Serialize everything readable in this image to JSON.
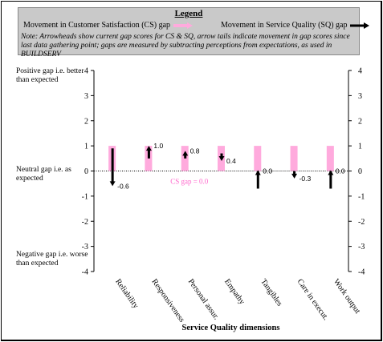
{
  "legend": {
    "title": "Legend",
    "cs_label": "Movement in Customer Satisfaction (CS) gap",
    "sq_label": "Movement in Service Quality (SQ) gap",
    "note": "Note: Arrowheads show current gap scores for CS & SQ, arrow tails indicate movement in gap scores since last data gathering point; gaps are measured by subtracting perceptions from expectations, as used in BUILDSERV"
  },
  "side_labels": {
    "positive": "Positive gap i.e. better than expected",
    "neutral": "Neutral gap i.e. as expected",
    "negative": "Negative gap i.e. worse than expected"
  },
  "colors": {
    "cs": "#ffaadd",
    "sq": "#000000",
    "cs_label": "#ff66cc"
  },
  "chart_data": {
    "type": "bar",
    "xlabel": "Service Quality dimensions",
    "ylim": [
      -4,
      4
    ],
    "yticks": [
      -4,
      -3,
      -2,
      -1,
      0,
      1,
      2,
      3,
      4
    ],
    "categories": [
      "Reliability",
      "Responsiveness",
      "Personal assur.",
      "Empathy",
      "Tangibles",
      "Care in execut.",
      "Work output"
    ],
    "cs_bars": {
      "name": "Movement in Customer Satisfaction (CS) gap",
      "from": [
        0,
        0,
        0,
        0,
        0,
        0,
        0
      ],
      "to": [
        1,
        1,
        1,
        1,
        1,
        1,
        1
      ]
    },
    "cs_annotation": "CS gap = 0.0",
    "sq_arrows": {
      "name": "Movement in Service Quality (SQ) gap",
      "tail": [
        0.9,
        0.5,
        0.5,
        0.7,
        0.0,
        0.0,
        0.0
      ],
      "head": [
        -0.6,
        1.0,
        0.8,
        0.4,
        0.0,
        -0.3,
        0.0
      ],
      "labels": [
        "-0.6",
        "1.0",
        "0.8",
        "0.4",
        "0.0",
        "-0.3",
        "0.0"
      ]
    }
  }
}
